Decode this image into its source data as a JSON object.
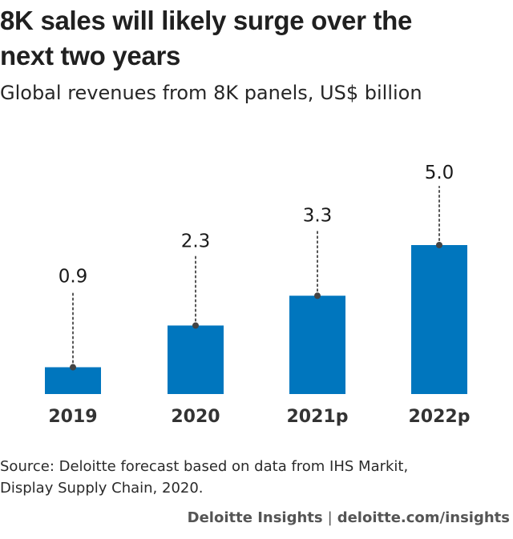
{
  "header": {
    "title_line1": "8K sales will likely surge over the",
    "title_line2": "next two years",
    "subtitle": "Global revenues from 8K panels, US$ billion"
  },
  "chart_data": {
    "type": "bar",
    "title": "8K sales will likely surge over the next two years",
    "subtitle": "Global revenues from 8K panels, US$ billion",
    "categories": [
      "2019",
      "2020",
      "2021p",
      "2022p"
    ],
    "values": [
      0.9,
      2.3,
      3.3,
      5.0
    ],
    "value_labels": [
      "0.9",
      "2.3",
      "3.3",
      "5.0"
    ],
    "xlabel": "",
    "ylabel": "US$ billion",
    "ylim": [
      0,
      5.0
    ],
    "grid": false,
    "bar_color": "#0076BE",
    "leader_line_color": "#555555"
  },
  "footer": {
    "source_line1": "Source: Deloitte forecast based on data from IHS Markit,",
    "source_line2": "Display Supply Chain, 2020.",
    "brand": "Deloitte Insights",
    "separator": "|",
    "url": "deloitte.com/insights"
  }
}
